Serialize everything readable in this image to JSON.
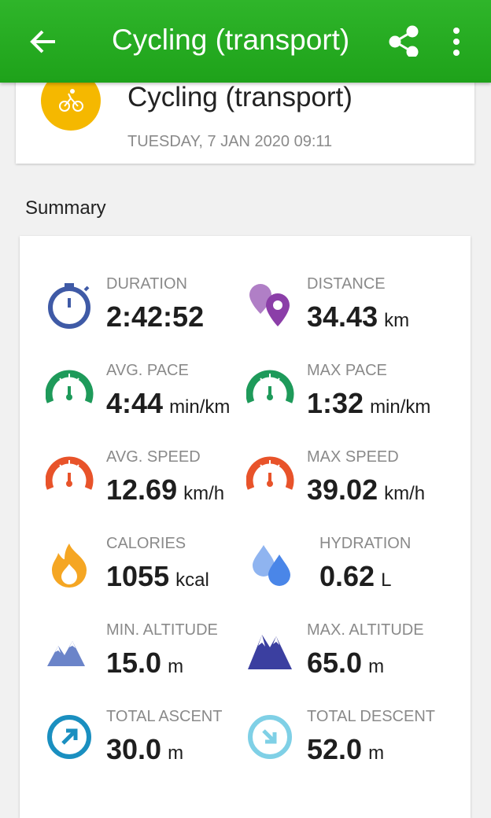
{
  "header": {
    "title": "Cycling (transport)"
  },
  "card": {
    "title": "Cycling (transport)",
    "date": "TUESDAY, 7 JAN 2020 09:11"
  },
  "summary": {
    "heading": "Summary"
  },
  "stats": [
    {
      "label": "DURATION",
      "value": "2:42:52"
    },
    {
      "label": "DISTANCE",
      "value": "34.43",
      "unit": "km"
    },
    {
      "label": "AVG. PACE",
      "value": "4:44",
      "unit": "min/km"
    },
    {
      "label": "MAX PACE",
      "value": "1:32",
      "unit": "min/km"
    },
    {
      "label": "AVG. SPEED",
      "value": "12.69",
      "unit": "km/h"
    },
    {
      "label": "MAX SPEED",
      "value": "39.02",
      "unit": "km/h"
    },
    {
      "label": "CALORIES",
      "value": "1055",
      "unit": "kcal"
    },
    {
      "label": "HYDRATION",
      "value": "0.62",
      "unit": "L"
    },
    {
      "label": "MIN. ALTITUDE",
      "value": "15.0",
      "unit": "m"
    },
    {
      "label": "MAX. ALTITUDE",
      "value": "65.0",
      "unit": "m"
    },
    {
      "label": "TOTAL ASCENT",
      "value": "30.0",
      "unit": "m"
    },
    {
      "label": "TOTAL DESCENT",
      "value": "52.0",
      "unit": "m"
    }
  ]
}
